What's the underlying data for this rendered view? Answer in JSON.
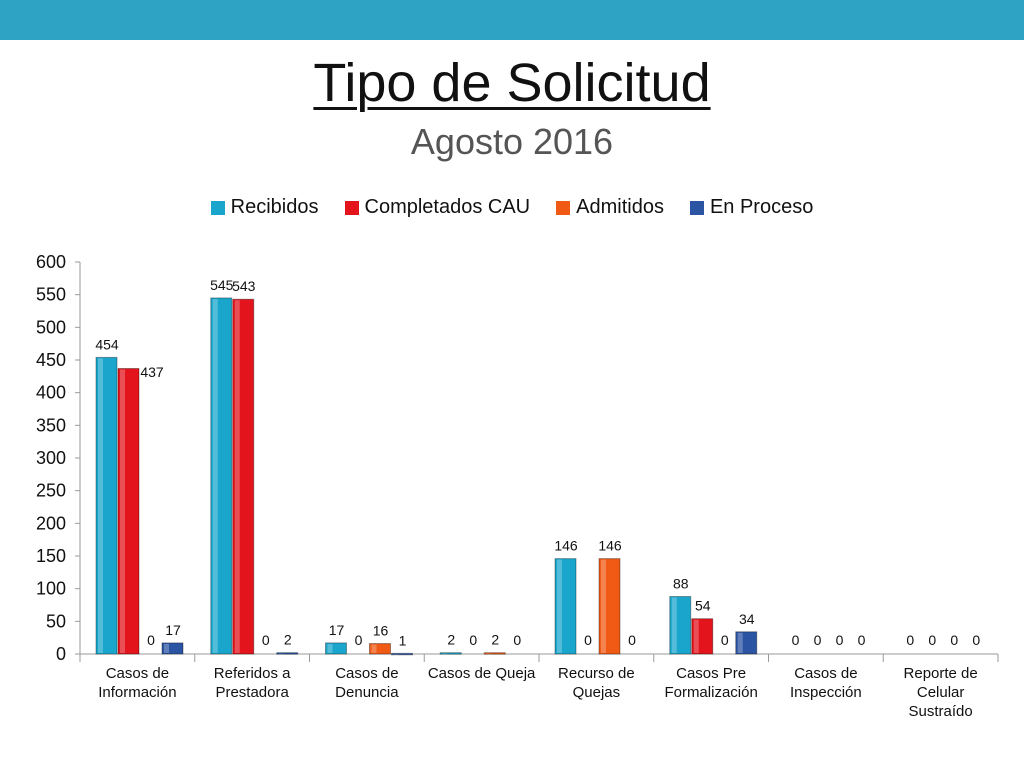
{
  "slide": {
    "title": "Tipo de Solicitud",
    "subtitle": "Agosto 2016",
    "band_color": "#2ea3c3"
  },
  "chart_data": {
    "type": "bar",
    "categories": [
      [
        "Casos de",
        "Información"
      ],
      [
        "Referidos a",
        "Prestadora"
      ],
      [
        "Casos de",
        "Denuncia"
      ],
      [
        "Casos de Queja"
      ],
      [
        "Recurso de",
        "Quejas"
      ],
      [
        "Casos Pre",
        "Formalización"
      ],
      [
        "Casos de",
        "Inspección"
      ],
      [
        "Reporte de",
        "Celular",
        "Sustraído"
      ]
    ],
    "series": [
      {
        "name": "Recibidos",
        "color": "#1aa6cc",
        "values": [
          454,
          545,
          17,
          2,
          146,
          88,
          0,
          0
        ]
      },
      {
        "name": "Completados CAU",
        "color": "#e3141c",
        "values": [
          437,
          543,
          0,
          0,
          0,
          54,
          0,
          0
        ]
      },
      {
        "name": "Admitidos",
        "color": "#f05a14",
        "values": [
          0,
          0,
          16,
          2,
          146,
          0,
          0,
          0
        ]
      },
      {
        "name": "En Proceso",
        "color": "#2b55a3",
        "values": [
          17,
          2,
          1,
          0,
          0,
          34,
          0,
          0
        ]
      }
    ],
    "ylim": [
      0,
      600
    ],
    "yticks": [
      0,
      50,
      100,
      150,
      200,
      250,
      300,
      350,
      400,
      450,
      500,
      550,
      600
    ],
    "legend": "top",
    "grid": false
  }
}
